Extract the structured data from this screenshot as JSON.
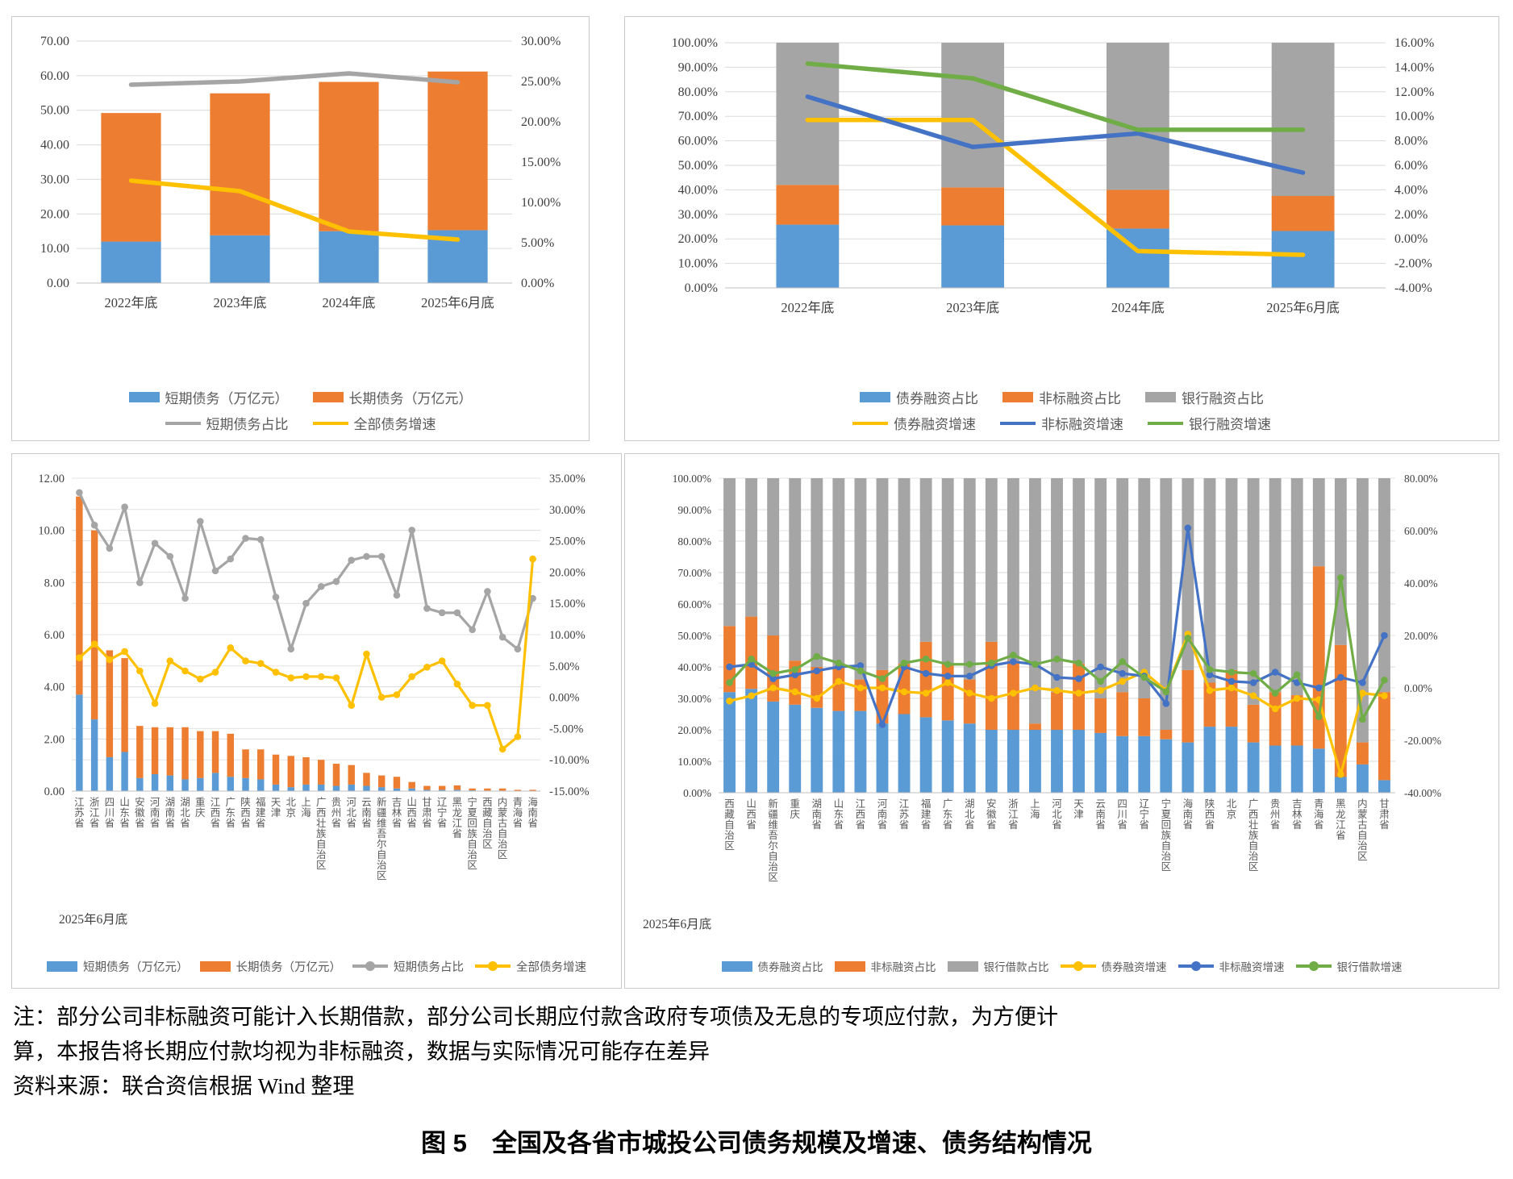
{
  "figure": {
    "note_line1": "注：部分公司非标融资可能计入长期借款，部分公司长期应付款含政府专项债及无息的专项应付款，为方便计",
    "note_line2": "算，本报告将长期应付款均视为非标融资，数据与实际情况可能存在差异",
    "note_line3": "资料来源：联合资信根据 Wind 整理",
    "caption": "图 5　全国及各省市城投公司债务规模及增速、债务结构情况"
  },
  "colors": {
    "blue_bar": "#5B9BD5",
    "orange_bar": "#ED7D31",
    "gray_bar": "#A5A5A5",
    "yellow_line": "#FFC000",
    "blue_line": "#4472C4",
    "green_line": "#70AD47",
    "gray_line": "#A5A5A5"
  },
  "chart_data": [
    {
      "id": "national-debt-scale",
      "type": "bar",
      "categories": [
        "2022年底",
        "2023年底",
        "2024年底",
        "2025年6月底"
      ],
      "left_axis": {
        "min": 0,
        "max": 70,
        "step": 10,
        "format": "number"
      },
      "right_axis": {
        "min": 0,
        "max": 30,
        "step": 5,
        "format": "percent"
      },
      "bar_series": [
        {
          "name": "短期债务（万亿元）",
          "color": "#5B9BD5",
          "values": [
            12.0,
            13.8,
            15.0,
            15.3
          ]
        },
        {
          "name": "长期债务（万亿元）",
          "color": "#ED7D31",
          "values": [
            37.2,
            41.1,
            43.2,
            45.9
          ]
        }
      ],
      "line_series": [
        {
          "name": "短期债务占比",
          "color": "#A5A5A5",
          "markers": false,
          "values": [
            24.6,
            25.0,
            26.0,
            24.9
          ]
        },
        {
          "name": "全部债务增速",
          "color": "#FFC000",
          "markers": false,
          "values": [
            12.7,
            11.4,
            6.4,
            5.4
          ]
        }
      ],
      "legend_rows": [
        [
          "短期债务（万亿元）",
          "长期债务（万亿元）"
        ],
        [
          "短期债务占比",
          "全部债务增速"
        ]
      ]
    },
    {
      "id": "national-funding-structure",
      "type": "bar",
      "categories": [
        "2022年底",
        "2023年底",
        "2024年底",
        "2025年6月底"
      ],
      "left_axis": {
        "min": 0,
        "max": 100,
        "step": 10,
        "format": "percent"
      },
      "right_axis": {
        "min": -4,
        "max": 16,
        "step": 2,
        "format": "percent"
      },
      "bar_series": [
        {
          "name": "债券融资占比",
          "color": "#5B9BD5",
          "values": [
            25.8,
            25.5,
            24.2,
            23.2
          ]
        },
        {
          "name": "非标融资占比",
          "color": "#ED7D31",
          "values": [
            16.2,
            15.5,
            15.8,
            14.3
          ]
        },
        {
          "name": "银行融资占比",
          "color": "#A5A5A5",
          "values": [
            58.0,
            59.0,
            60.0,
            62.5
          ]
        }
      ],
      "line_series": [
        {
          "name": "债券融资增速",
          "color": "#FFC000",
          "markers": false,
          "values": [
            9.7,
            9.7,
            -1.0,
            -1.3
          ]
        },
        {
          "name": "非标融资增速",
          "color": "#4472C4",
          "markers": false,
          "values": [
            11.6,
            7.5,
            8.6,
            5.4
          ]
        },
        {
          "name": "银行融资增速",
          "color": "#70AD47",
          "markers": false,
          "values": [
            14.3,
            13.1,
            8.9,
            8.9
          ]
        }
      ],
      "legend_rows": [
        [
          "债券融资占比",
          "非标融资占比",
          "银行融资占比"
        ],
        [
          "债券融资增速",
          "非标融资增速",
          "银行融资增速"
        ]
      ]
    },
    {
      "id": "province-debt-scale",
      "type": "bar",
      "period_label": "2025年6月底",
      "categories": [
        "江苏省",
        "浙江省",
        "四川省",
        "山东省",
        "安徽省",
        "河南省",
        "湖南省",
        "湖北省",
        "重庆",
        "江西省",
        "广东省",
        "陕西省",
        "福建省",
        "天津",
        "北京",
        "上海",
        "广西壮族自治区",
        "贵州省",
        "河北省",
        "云南省",
        "新疆维吾尔自治区",
        "吉林省",
        "山西省",
        "甘肃省",
        "辽宁省",
        "黑龙江省",
        "宁夏回族自治区",
        "西藏自治区",
        "内蒙古自治区",
        "青海省",
        "海南省"
      ],
      "left_axis": {
        "min": 0,
        "max": 12,
        "step": 2,
        "format": "number"
      },
      "right_axis": {
        "min": -15,
        "max": 35,
        "step": 5,
        "format": "percent"
      },
      "bar_series": [
        {
          "name": "短期债务（万亿元）",
          "color": "#5B9BD5",
          "values": [
            3.7,
            2.75,
            1.3,
            1.5,
            0.5,
            0.65,
            0.6,
            0.45,
            0.5,
            0.7,
            0.55,
            0.5,
            0.45,
            0.25,
            0.15,
            0.25,
            0.25,
            0.2,
            0.25,
            0.2,
            0.15,
            0.1,
            0.1,
            0.05,
            0.05,
            0.05,
            0.03,
            0.02,
            0.02,
            0.01,
            0.01
          ]
        },
        {
          "name": "长期债务（万亿元）",
          "color": "#ED7D31",
          "values": [
            7.6,
            7.25,
            4.1,
            3.6,
            2.0,
            1.8,
            1.85,
            2.0,
            1.8,
            1.6,
            1.65,
            1.1,
            1.15,
            1.15,
            1.2,
            1.05,
            0.95,
            0.85,
            0.75,
            0.5,
            0.45,
            0.45,
            0.25,
            0.15,
            0.15,
            0.17,
            0.07,
            0.08,
            0.08,
            0.04,
            0.04
          ]
        }
      ],
      "line_series": [
        {
          "name": "短期债务占比",
          "color": "#A5A5A5",
          "markers": true,
          "values": [
            32.7,
            27.5,
            23.8,
            30.4,
            18.3,
            24.6,
            22.5,
            15.8,
            28.1,
            20.2,
            22.1,
            25.4,
            25.2,
            16.0,
            7.7,
            15.0,
            17.7,
            18.5,
            21.9,
            22.5,
            22.5,
            16.3,
            26.7,
            14.2,
            13.5,
            13.5,
            10.8,
            16.9,
            9.6,
            7.7,
            15.8
          ]
        },
        {
          "name": "全部债务增速",
          "color": "#FFC000",
          "markers": true,
          "values": [
            6.3,
            8.5,
            6.0,
            7.3,
            4.2,
            -1.0,
            5.8,
            4.2,
            2.9,
            4.0,
            7.9,
            5.8,
            5.4,
            4.0,
            3.1,
            3.3,
            3.3,
            3.1,
            -1.3,
            6.9,
            0.0,
            0.4,
            3.3,
            4.8,
            5.8,
            2.1,
            -1.3,
            -1.3,
            -8.3,
            -6.3,
            22.1
          ]
        }
      ],
      "legend_rows": [
        [
          "短期债务（万亿元）",
          "长期债务（万亿元）",
          "短期债务占比",
          "全部债务增速"
        ]
      ]
    },
    {
      "id": "province-funding-structure",
      "type": "bar",
      "period_label": "2025年6月底",
      "categories": [
        "西藏自治区",
        "山西省",
        "新疆维吾尔自治区",
        "重庆",
        "湖南省",
        "山东省",
        "江西省",
        "河南省",
        "江苏省",
        "福建省",
        "广东省",
        "湖北省",
        "安徽省",
        "浙江省",
        "上海",
        "河北省",
        "天津",
        "云南省",
        "四川省",
        "辽宁省",
        "宁夏回族自治区",
        "海南省",
        "陕西省",
        "北京",
        "广西壮族自治区",
        "贵州省",
        "吉林省",
        "青海省",
        "黑龙江省",
        "内蒙古自治区",
        "甘肃省"
      ],
      "left_axis": {
        "min": 0,
        "max": 100,
        "step": 10,
        "format": "percent"
      },
      "right_axis": {
        "min": -40,
        "max": 80,
        "step": 20,
        "format": "percent"
      },
      "bar_series": [
        {
          "name": "债券融资占比",
          "color": "#5B9BD5",
          "values": [
            32,
            33,
            29,
            28,
            27,
            26,
            26,
            22,
            25,
            24,
            23,
            22,
            20,
            20,
            20,
            20,
            20,
            19,
            18,
            18,
            17,
            16,
            21,
            21,
            16,
            15,
            15,
            14,
            5,
            9,
            4
          ]
        },
        {
          "name": "非标融资占比",
          "color": "#ED7D31",
          "values": [
            21,
            23,
            21,
            14,
            13,
            14,
            10,
            17,
            16,
            24,
            18,
            14,
            28,
            22,
            2,
            12,
            21,
            11,
            14,
            12,
            3,
            23,
            14,
            18,
            12,
            17,
            16,
            58,
            42,
            7,
            28
          ]
        },
        {
          "name": "银行借款占比",
          "color": "#A5A5A5",
          "values": [
            47,
            44,
            50,
            58,
            60,
            60,
            64,
            61,
            59,
            52,
            59,
            64,
            52,
            58,
            78,
            68,
            59,
            70,
            68,
            70,
            80,
            61,
            65,
            61,
            72,
            68,
            69,
            28,
            53,
            84,
            68
          ]
        }
      ],
      "line_series": [
        {
          "name": "债券融资增速",
          "color": "#FFC000",
          "markers": true,
          "values": [
            -5,
            -3,
            0,
            -1.5,
            -4,
            2.5,
            0,
            0,
            -1.5,
            -2,
            2,
            -2,
            -4,
            -2,
            0,
            -1,
            -2,
            -1,
            2.5,
            6,
            -1,
            20.5,
            -1,
            0,
            -3,
            -8,
            -4,
            -4.5,
            -33,
            -2,
            -3
          ]
        },
        {
          "name": "非标融资增速",
          "color": "#4472C4",
          "markers": true,
          "values": [
            8,
            9,
            3.5,
            5,
            6.5,
            8,
            8.5,
            -14,
            8,
            5.5,
            4.5,
            4.5,
            8.5,
            10,
            9,
            4,
            3.5,
            8,
            5.5,
            4.5,
            -6,
            61,
            5,
            2.5,
            2,
            6,
            2,
            0,
            4,
            2,
            20
          ]
        },
        {
          "name": "银行借款增速",
          "color": "#70AD47",
          "markers": true,
          "values": [
            2,
            11,
            5.5,
            7,
            12,
            9.5,
            6.5,
            3.5,
            9.5,
            11,
            9,
            9,
            9.5,
            12.5,
            9,
            11,
            9.5,
            2.5,
            10,
            4,
            -1.5,
            19,
            7,
            6,
            5.5,
            -2,
            5,
            -11,
            42,
            -12,
            3
          ]
        }
      ],
      "legend_rows": [
        [
          "债券融资占比",
          "非标融资占比",
          "银行借款占比",
          "债券融资增速",
          "非标融资增速",
          "银行借款增速"
        ]
      ]
    }
  ]
}
